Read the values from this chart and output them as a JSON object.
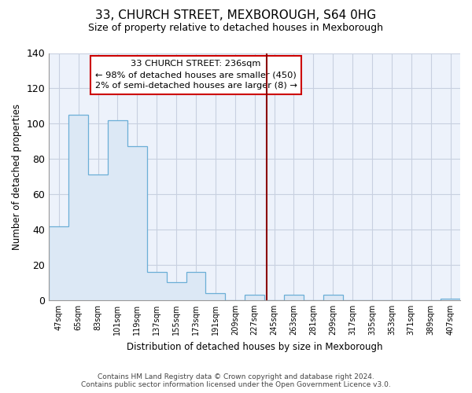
{
  "title": "33, CHURCH STREET, MEXBOROUGH, S64 0HG",
  "subtitle": "Size of property relative to detached houses in Mexborough",
  "xlabel": "Distribution of detached houses by size in Mexborough",
  "ylabel": "Number of detached properties",
  "bar_labels": [
    "47sqm",
    "65sqm",
    "83sqm",
    "101sqm",
    "119sqm",
    "137sqm",
    "155sqm",
    "173sqm",
    "191sqm",
    "209sqm",
    "227sqm",
    "245sqm",
    "263sqm",
    "281sqm",
    "299sqm",
    "317sqm",
    "335sqm",
    "353sqm",
    "371sqm",
    "389sqm",
    "407sqm"
  ],
  "bar_values": [
    42,
    105,
    71,
    102,
    87,
    16,
    10,
    16,
    4,
    0,
    3,
    0,
    3,
    0,
    3,
    0,
    0,
    0,
    0,
    0,
    1
  ],
  "bar_fill_color": "#dce8f5",
  "bar_edge_color": "#6baed6",
  "ylim": [
    0,
    140
  ],
  "yticks": [
    0,
    20,
    40,
    60,
    80,
    100,
    120,
    140
  ],
  "marker_color": "#8b0000",
  "annotation_title": "33 CHURCH STREET: 236sqm",
  "annotation_line1": "← 98% of detached houses are smaller (450)",
  "annotation_line2": "2% of semi-detached houses are larger (8) →",
  "annotation_box_color": "#ffffff",
  "annotation_box_edge": "#cc0000",
  "footer_line1": "Contains HM Land Registry data © Crown copyright and database right 2024.",
  "footer_line2": "Contains public sector information licensed under the Open Government Licence v3.0.",
  "background_color": "#ffffff",
  "plot_bg_color": "#edf2fb",
  "grid_color": "#c8d0e0"
}
